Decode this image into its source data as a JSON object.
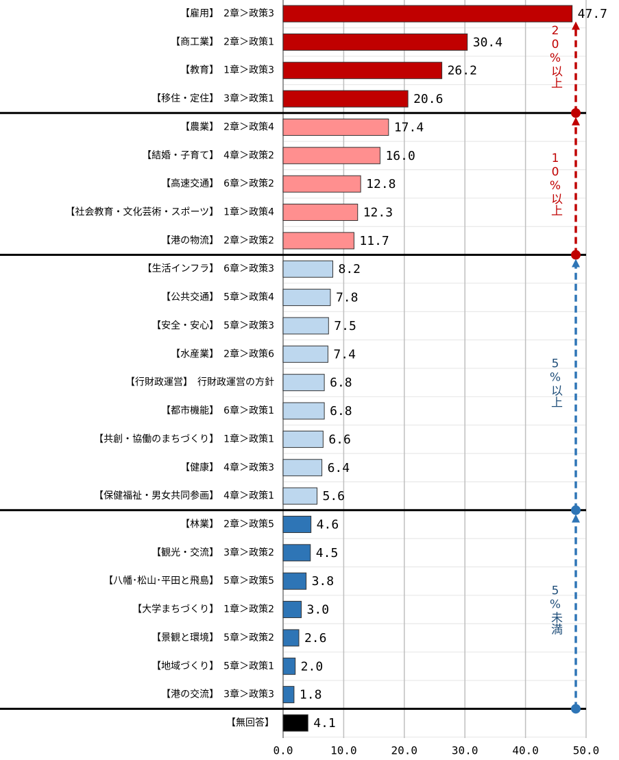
{
  "chart_data": {
    "type": "bar",
    "orientation": "horizontal",
    "categories": [
      "【雇用】　2章＞政策3",
      "【商工業】　2章＞政策1",
      "【教育】　1章＞政策3",
      "【移住・定住】　3章＞政策1",
      "【農業】　2章＞政策4",
      "【結婚・子育て】　4章＞政策2",
      "【高速交通】　6章＞政策2",
      "【社会教育・文化芸術・スポーツ】　1章＞政策4",
      "【港の物流】　2章＞政策2",
      "【生活インフラ】　6章＞政策3",
      "【公共交通】　5章＞政策4",
      "【安全・安心】　5章＞政策3",
      "【水産業】　2章＞政策6",
      "【行財政運営】　行財政運営の方針",
      "【都市機能】　6章＞政策1",
      "【共創・協働のまちづくり】　1章＞政策1",
      "【健康】　4章＞政策3",
      "【保健福祉・男女共同参画】　4章＞政策1",
      "【林業】　2章＞政策5",
      "【観光・交流】　3章＞政策2",
      "【八幡･松山･平田と飛島】　5章＞政策5",
      "【大学まちづくり】　1章＞政策2",
      "【景観と環境】　5章＞政策2",
      "【地域づくり】　5章＞政策1",
      "【港の交流】　3章＞政策3",
      "【無回答】"
    ],
    "values": [
      47.7,
      30.4,
      26.2,
      20.6,
      17.4,
      16.0,
      12.8,
      12.3,
      11.7,
      8.2,
      7.8,
      7.5,
      7.4,
      6.8,
      6.8,
      6.6,
      6.4,
      5.6,
      4.6,
      4.5,
      3.8,
      3.0,
      2.6,
      2.0,
      1.8,
      4.1
    ],
    "value_labels": [
      "47.7",
      "30.4",
      "26.2",
      "20.6",
      "17.4",
      "16.0",
      "12.8",
      "12.3",
      "11.7",
      "8.2",
      "7.8",
      "7.5",
      "7.4",
      "6.8",
      "6.8",
      "6.6",
      "6.4",
      "5.6",
      "4.6",
      "4.5",
      "3.8",
      "3.0",
      "2.6",
      "2.0",
      "1.8",
      "4.1"
    ],
    "colors": [
      "#c00000",
      "#c00000",
      "#c00000",
      "#c00000",
      "#ff8f8f",
      "#ff8f8f",
      "#ff8f8f",
      "#ff8f8f",
      "#ff8f8f",
      "#bdd7ee",
      "#bdd7ee",
      "#bdd7ee",
      "#bdd7ee",
      "#bdd7ee",
      "#bdd7ee",
      "#bdd7ee",
      "#bdd7ee",
      "#bdd7ee",
      "#2e75b6",
      "#2e75b6",
      "#2e75b6",
      "#2e75b6",
      "#2e75b6",
      "#2e75b6",
      "#2e75b6",
      "#000000"
    ],
    "annotations": [
      {
        "text": "20%以上",
        "color": "#c00000"
      },
      {
        "text": "10%以上",
        "color": "#c00000"
      },
      {
        "text": "5%以上",
        "color": "#1f4e79"
      },
      {
        "text": "5%未満",
        "color": "#1f4e79"
      }
    ],
    "xlim": [
      0,
      50
    ],
    "xticks": [
      {
        "value": 0,
        "label": "0.0"
      },
      {
        "value": 10,
        "label": "10.0"
      },
      {
        "value": 20,
        "label": "20.0"
      },
      {
        "value": 30,
        "label": "30.0"
      },
      {
        "value": 40,
        "label": "40.0"
      },
      {
        "value": 50,
        "label": "50.0"
      }
    ],
    "grid": true
  }
}
